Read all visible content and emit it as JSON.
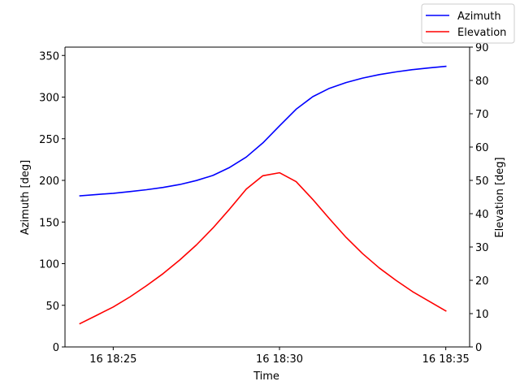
{
  "chart_data": {
    "type": "line",
    "xlabel": "Time",
    "ylabel_left": "Azimuth [deg]",
    "ylabel_right": "Elevation [deg]",
    "x_ticks": [
      "16 18:25",
      "16 18:30",
      "16 18:35"
    ],
    "x_tick_times": [
      "18:25",
      "18:30",
      "18:35"
    ],
    "xlim": [
      "18:23:33",
      "18:35:43"
    ],
    "ylim_left": [
      0,
      360
    ],
    "ylim_right": [
      0,
      90
    ],
    "y_ticks_left": [
      0,
      50,
      100,
      150,
      200,
      250,
      300,
      350
    ],
    "y_ticks_right": [
      0,
      10,
      20,
      30,
      40,
      50,
      60,
      70,
      80,
      90
    ],
    "grid": false,
    "legend_position": "top-right",
    "x": [
      "18:24:00",
      "18:24:30",
      "18:25:00",
      "18:25:30",
      "18:26:00",
      "18:26:30",
      "18:27:00",
      "18:27:30",
      "18:28:00",
      "18:28:30",
      "18:29:00",
      "18:29:30",
      "18:30:00",
      "18:30:30",
      "18:31:00",
      "18:31:30",
      "18:32:00",
      "18:32:30",
      "18:33:00",
      "18:33:30",
      "18:34:00",
      "18:34:30",
      "18:35:00"
    ],
    "series": [
      {
        "name": "Azimuth",
        "axis": "left",
        "color": "#0000ff",
        "values": [
          181.5,
          183,
          184.5,
          186.5,
          188.8,
          191.5,
          195,
          199.8,
          206,
          215.5,
          228,
          245,
          265.5,
          285.5,
          300.5,
          310.5,
          317.5,
          322.8,
          327,
          330.2,
          333,
          335,
          337
        ]
      },
      {
        "name": "Elevation",
        "axis": "right",
        "color": "#ff0000",
        "values": [
          7,
          9.5,
          12,
          15,
          18.4,
          22,
          26.1,
          30.6,
          35.7,
          41.4,
          47.4,
          51.4,
          52.3,
          49.6,
          44.3,
          38.5,
          32.9,
          28,
          23.7,
          20,
          16.6,
          13.7,
          10.8
        ]
      }
    ]
  }
}
